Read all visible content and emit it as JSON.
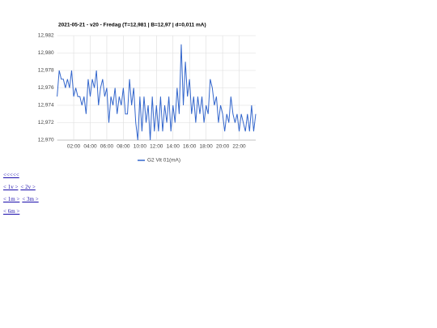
{
  "chart_data": {
    "type": "line",
    "title": "2021-05-21 - v20 - Fredag (T=12,981 | B=12,97 | d=0,011 mA)",
    "x": [
      0,
      0.25,
      0.5,
      0.75,
      1,
      1.25,
      1.5,
      1.75,
      2,
      2.25,
      2.5,
      2.75,
      3,
      3.25,
      3.5,
      3.75,
      4,
      4.25,
      4.5,
      4.75,
      5,
      5.25,
      5.5,
      5.75,
      6,
      6.25,
      6.5,
      6.75,
      7,
      7.25,
      7.5,
      7.75,
      8,
      8.25,
      8.5,
      8.75,
      9,
      9.25,
      9.5,
      9.75,
      10,
      10.25,
      10.5,
      10.75,
      11,
      11.25,
      11.5,
      11.75,
      12,
      12.25,
      12.5,
      12.75,
      13,
      13.25,
      13.5,
      13.75,
      14,
      14.25,
      14.5,
      14.75,
      15,
      15.25,
      15.5,
      15.75,
      16,
      16.25,
      16.5,
      16.75,
      17,
      17.25,
      17.5,
      17.75,
      18,
      18.25,
      18.5,
      18.75,
      19,
      19.25,
      19.5,
      19.75,
      20,
      20.25,
      20.5,
      20.75,
      21,
      21.25,
      21.5,
      21.75,
      22,
      22.25,
      22.5,
      22.75,
      23,
      23.25,
      23.5,
      23.75,
      24
    ],
    "series": [
      {
        "name": "G2 Vit 01(mA)",
        "color": "#3366cc",
        "values": [
          12.975,
          12.978,
          12.977,
          12.977,
          12.976,
          12.977,
          12.976,
          12.978,
          12.975,
          12.976,
          12.975,
          12.975,
          12.974,
          12.975,
          12.973,
          12.977,
          12.975,
          12.977,
          12.976,
          12.978,
          12.974,
          12.976,
          12.977,
          12.975,
          12.976,
          12.972,
          12.975,
          12.974,
          12.976,
          12.973,
          12.975,
          12.974,
          12.976,
          12.973,
          12.973,
          12.977,
          12.974,
          12.976,
          12.972,
          12.97,
          12.975,
          12.971,
          12.975,
          12.972,
          12.974,
          12.97,
          12.975,
          12.971,
          12.974,
          12.971,
          12.975,
          12.971,
          12.974,
          12.972,
          12.975,
          12.971,
          12.974,
          12.972,
          12.976,
          12.973,
          12.981,
          12.974,
          12.979,
          12.975,
          12.977,
          12.973,
          12.975,
          12.972,
          12.975,
          12.973,
          12.975,
          12.972,
          12.974,
          12.973,
          12.977,
          12.976,
          12.974,
          12.975,
          12.972,
          12.974,
          12.973,
          12.971,
          12.973,
          12.972,
          12.975,
          12.973,
          12.972,
          12.973,
          12.971,
          12.973,
          12.972,
          12.971,
          12.973,
          12.971,
          12.974,
          12.971,
          12.973
        ]
      }
    ],
    "xlim": [
      0,
      24
    ],
    "xticks": [
      {
        "value": 2,
        "label": "02:00"
      },
      {
        "value": 4,
        "label": "04:00"
      },
      {
        "value": 6,
        "label": "06:00"
      },
      {
        "value": 8,
        "label": "08:00"
      },
      {
        "value": 10,
        "label": "10:00"
      },
      {
        "value": 12,
        "label": "12:00"
      },
      {
        "value": 14,
        "label": "14:00"
      },
      {
        "value": 16,
        "label": "16:00"
      },
      {
        "value": 18,
        "label": "18:00"
      },
      {
        "value": 20,
        "label": "20:00"
      },
      {
        "value": 22,
        "label": "22:00"
      }
    ],
    "ylim": [
      12.97,
      12.982
    ],
    "yticks": [
      {
        "value": 12.97,
        "label": "12,970"
      },
      {
        "value": 12.972,
        "label": "12,972"
      },
      {
        "value": 12.974,
        "label": "12,974"
      },
      {
        "value": 12.976,
        "label": "12,976"
      },
      {
        "value": 12.978,
        "label": "12,978"
      },
      {
        "value": 12.98,
        "label": "12,980"
      },
      {
        "value": 12.982,
        "label": "12,982"
      }
    ],
    "grid": true,
    "legend": "bottom"
  },
  "links": [
    [
      "<<<<<"
    ],
    [
      "< 1v >",
      "< 2v >"
    ],
    [
      "< 1m >",
      "< 3m >"
    ],
    [
      "< 6m >"
    ]
  ]
}
